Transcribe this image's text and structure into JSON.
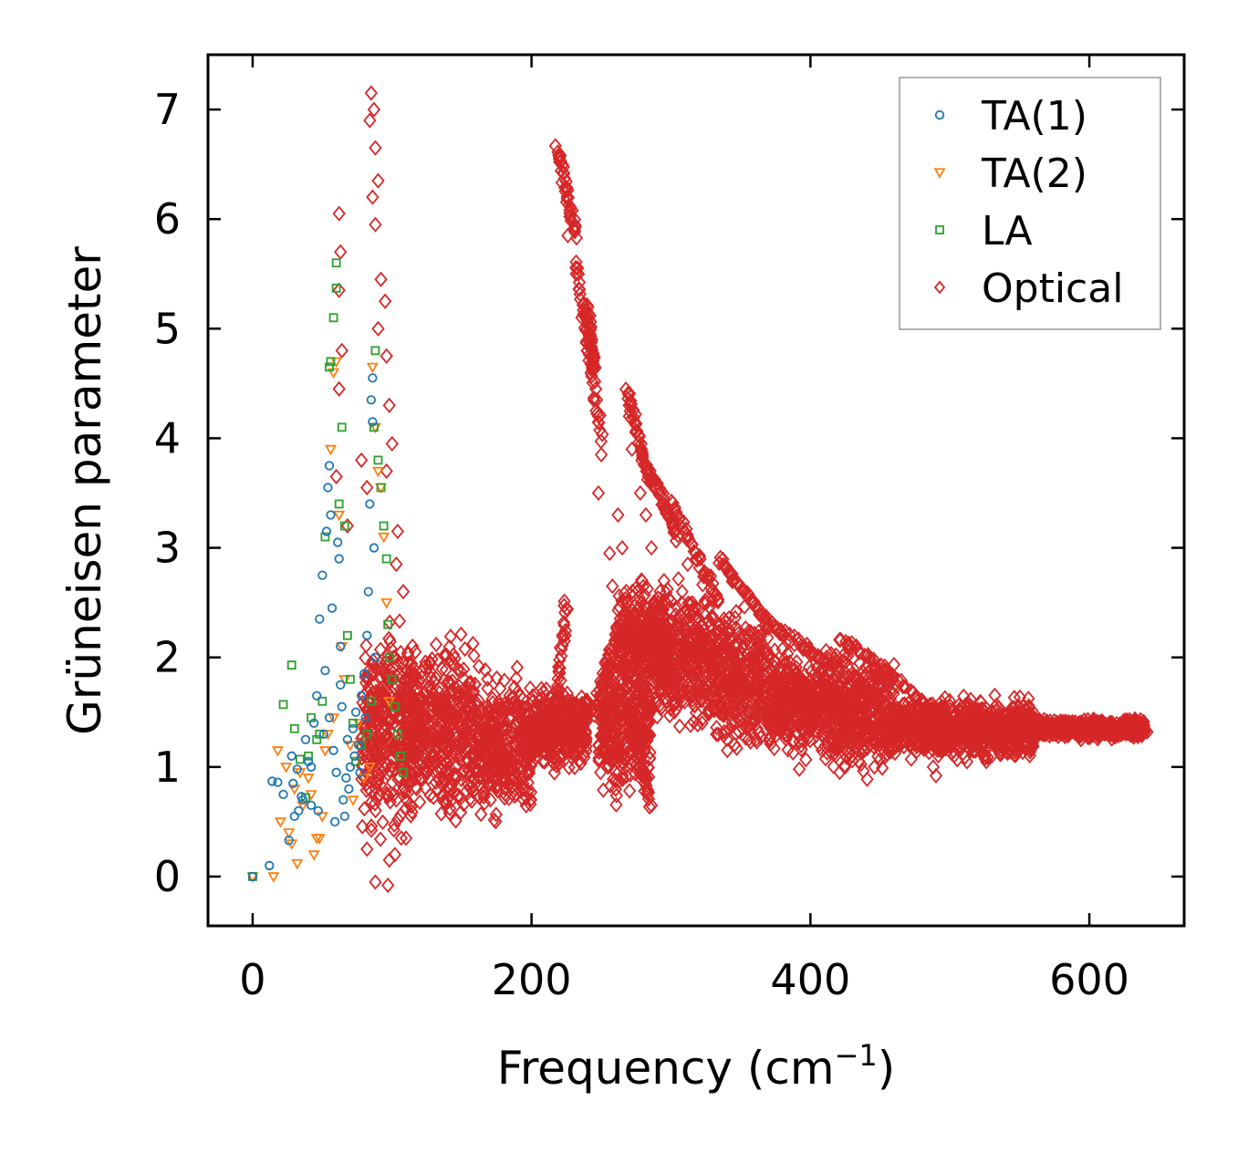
{
  "chart_data": {
    "type": "scatter",
    "title": "",
    "xlabel": "Frequency (cm",
    "xlabel_sup": "−1",
    "xlabel_close": ")",
    "ylabel": "Grüneisen parameter",
    "xlim": [
      -32,
      668
    ],
    "ylim": [
      -0.45,
      7.5
    ],
    "xticks": [
      0,
      200,
      400,
      600
    ],
    "xtick_labels": [
      "0",
      "200",
      "400",
      "600"
    ],
    "yticks": [
      0,
      1,
      2,
      3,
      4,
      5,
      6,
      7
    ],
    "ytick_labels": [
      "0",
      "1",
      "2",
      "3",
      "4",
      "5",
      "6",
      "7"
    ],
    "grid": false,
    "legend_position": "top-right",
    "colors": {
      "ta1": "#1f77b4",
      "ta2": "#ff7f0e",
      "la": "#2ca02c",
      "optical": "#d62728",
      "axis": "#000000"
    },
    "series": [
      {
        "name": "TA(1)",
        "marker": "circle",
        "color": "#1f77b4",
        "points": [
          [
            0,
            0.0
          ],
          [
            12,
            0.1
          ],
          [
            14,
            0.87
          ],
          [
            18,
            0.86
          ],
          [
            22,
            0.75
          ],
          [
            26,
            0.33
          ],
          [
            28,
            1.1
          ],
          [
            30,
            0.55
          ],
          [
            32,
            0.98
          ],
          [
            35,
            0.73
          ],
          [
            38,
            1.25
          ],
          [
            40,
            1.05
          ],
          [
            42,
            0.65
          ],
          [
            44,
            1.4
          ],
          [
            46,
            1.65
          ],
          [
            48,
            2.35
          ],
          [
            50,
            2.75
          ],
          [
            52,
            1.88
          ],
          [
            53,
            3.15
          ],
          [
            54,
            3.55
          ],
          [
            55,
            3.75
          ],
          [
            56,
            3.3
          ],
          [
            57,
            2.45
          ],
          [
            58,
            1.15
          ],
          [
            60,
            0.95
          ],
          [
            61,
            3.05
          ],
          [
            62,
            2.9
          ],
          [
            63,
            2.1
          ],
          [
            64,
            1.55
          ],
          [
            65,
            0.7
          ],
          [
            66,
            0.55
          ],
          [
            67,
            0.9
          ],
          [
            68,
            1.25
          ],
          [
            70,
            1.0
          ],
          [
            72,
            1.35
          ],
          [
            74,
            1.5
          ],
          [
            76,
            1.2
          ],
          [
            78,
            1.65
          ],
          [
            80,
            1.85
          ],
          [
            82,
            2.2
          ],
          [
            83,
            2.6
          ],
          [
            84,
            3.4
          ],
          [
            85,
            4.35
          ],
          [
            86,
            4.55
          ],
          [
            87,
            3.0
          ],
          [
            88,
            2.0
          ],
          [
            86,
            4.15
          ],
          [
            36,
            0.7
          ],
          [
            33,
            0.6
          ],
          [
            29,
            0.85
          ],
          [
            42,
            1.0
          ],
          [
            47,
            0.6
          ],
          [
            51,
            1.3
          ],
          [
            55,
            1.45
          ],
          [
            59,
            0.5
          ],
          [
            63,
            1.75
          ],
          [
            69,
            0.8
          ],
          [
            73,
            1.1
          ],
          [
            77,
            0.95
          ],
          [
            81,
            1.45
          ]
        ]
      },
      {
        "name": "TA(2)",
        "marker": "triangle-down",
        "color": "#ff7f0e",
        "points": [
          [
            0,
            0.0
          ],
          [
            15,
            0.0
          ],
          [
            18,
            1.15
          ],
          [
            20,
            0.5
          ],
          [
            24,
            1.0
          ],
          [
            28,
            0.3
          ],
          [
            30,
            0.8
          ],
          [
            32,
            0.12
          ],
          [
            36,
            0.65
          ],
          [
            40,
            0.9
          ],
          [
            44,
            0.2
          ],
          [
            46,
            0.35
          ],
          [
            48,
            0.35
          ],
          [
            52,
            1.15
          ],
          [
            54,
            1.3
          ],
          [
            56,
            3.9
          ],
          [
            58,
            4.6
          ],
          [
            60,
            4.7
          ],
          [
            62,
            3.3
          ],
          [
            64,
            2.1
          ],
          [
            66,
            1.8
          ],
          [
            70,
            1.2
          ],
          [
            72,
            0.7
          ],
          [
            76,
            1.4
          ],
          [
            80,
            0.9
          ],
          [
            84,
            1.0
          ],
          [
            86,
            4.65
          ],
          [
            88,
            4.1
          ],
          [
            90,
            3.7
          ],
          [
            92,
            3.55
          ],
          [
            94,
            3.1
          ],
          [
            96,
            2.5
          ],
          [
            98,
            1.6
          ],
          [
            58,
            1.45
          ],
          [
            50,
            0.55
          ],
          [
            42,
            0.75
          ],
          [
            34,
            0.95
          ],
          [
            26,
            0.4
          ]
        ]
      },
      {
        "name": "LA",
        "marker": "square",
        "color": "#2ca02c",
        "points": [
          [
            0,
            0.0
          ],
          [
            22,
            1.57
          ],
          [
            28,
            1.93
          ],
          [
            30,
            1.35
          ],
          [
            34,
            1.07
          ],
          [
            38,
            0.72
          ],
          [
            42,
            1.45
          ],
          [
            46,
            1.25
          ],
          [
            50,
            1.6
          ],
          [
            52,
            3.1
          ],
          [
            55,
            4.65
          ],
          [
            58,
            5.1
          ],
          [
            60,
            5.6
          ],
          [
            62,
            3.4
          ],
          [
            64,
            4.1
          ],
          [
            66,
            3.2
          ],
          [
            68,
            2.2
          ],
          [
            70,
            1.8
          ],
          [
            72,
            1.4
          ],
          [
            74,
            1.05
          ],
          [
            78,
            1.2
          ],
          [
            82,
            1.3
          ],
          [
            85,
            1.6
          ],
          [
            87,
            4.1
          ],
          [
            88,
            4.8
          ],
          [
            90,
            3.8
          ],
          [
            92,
            3.55
          ],
          [
            94,
            3.2
          ],
          [
            96,
            2.9
          ],
          [
            97,
            2.3
          ],
          [
            98,
            2.0
          ],
          [
            100,
            1.8
          ],
          [
            102,
            1.55
          ],
          [
            104,
            1.3
          ],
          [
            106,
            1.1
          ],
          [
            108,
            0.95
          ],
          [
            60,
            5.37
          ],
          [
            56,
            4.7
          ],
          [
            48,
            1.3
          ],
          [
            40,
            1.1
          ]
        ]
      },
      {
        "name": "Optical",
        "marker": "diamond",
        "color": "#d62728",
        "bands": [
          {
            "x_range": [
              78,
              115
            ],
            "y_range": [
              0.2,
              2.5
            ]
          },
          {
            "x_range": [
              110,
              135
            ],
            "y_range": [
              0.4,
              2.3
            ]
          },
          {
            "x_range": [
              135,
              160
            ],
            "y_range": [
              0.3,
              2.4
            ]
          },
          {
            "x_range": [
              160,
              200
            ],
            "y_range": [
              0.35,
              2.0
            ]
          },
          {
            "x_range": [
              200,
              240
            ],
            "y_range": [
              0.9,
              1.8
            ]
          },
          {
            "x_range": [
              248,
              285
            ],
            "y_range": [
              0.6,
              2.2
            ]
          },
          {
            "x_range": [
              262,
              300
            ],
            "y_range": [
              1.4,
              2.9
            ]
          },
          {
            "x_range": [
              290,
              330
            ],
            "y_range": [
              1.2,
              2.8
            ]
          },
          {
            "x_range": [
              330,
              370
            ],
            "y_range": [
              1.0,
              2.6
            ]
          },
          {
            "x_range": [
              370,
              410
            ],
            "y_range": [
              1.0,
              2.2
            ]
          },
          {
            "x_range": [
              410,
              460
            ],
            "y_range": [
              0.8,
              2.2
            ]
          },
          {
            "x_range": [
              460,
              560
            ],
            "y_range": [
              1.0,
              1.7
            ]
          },
          {
            "x_range": [
              560,
              640
            ],
            "y_range": [
              1.25,
              1.45
            ]
          }
        ],
        "lines": [
          {
            "from": [
              218,
              6.65
            ],
            "to": [
              232,
              5.85
            ]
          },
          {
            "from": [
              232,
              5.6
            ],
            "to": [
              250,
              4.0
            ]
          },
          {
            "from": [
              240,
              5.2
            ],
            "to": [
              245,
              4.6
            ]
          },
          {
            "from": [
              268,
              4.45
            ],
            "to": [
              285,
              3.6
            ]
          },
          {
            "from": [
              285,
              3.7
            ],
            "to": [
              305,
              3.1
            ]
          },
          {
            "from": [
              300,
              3.4
            ],
            "to": [
              335,
              2.5
            ]
          },
          {
            "from": [
              335,
              2.9
            ],
            "to": [
              370,
              2.3
            ]
          },
          {
            "from": [
              370,
              2.3
            ],
            "to": [
              420,
              1.9
            ]
          },
          {
            "from": [
              420,
              2.2
            ],
            "to": [
              480,
              1.6
            ]
          },
          {
            "from": [
              600,
              1.43
            ],
            "to": [
              640,
              1.28
            ]
          },
          {
            "from": [
              245,
              1.5
            ],
            "to": [
              262,
              2.3
            ]
          },
          {
            "from": [
              270,
              1.6
            ],
            "to": [
              285,
              0.65
            ]
          },
          {
            "from": [
              215,
              1.2
            ],
            "to": [
              225,
              2.5
            ]
          }
        ],
        "points": [
          [
            85,
            7.15
          ],
          [
            87,
            7.0
          ],
          [
            84,
            6.9
          ],
          [
            88,
            6.65
          ],
          [
            90,
            6.35
          ],
          [
            86,
            6.2
          ],
          [
            88,
            5.95
          ],
          [
            62,
            6.05
          ],
          [
            63,
            5.7
          ],
          [
            62,
            5.35
          ],
          [
            92,
            5.45
          ],
          [
            95,
            5.25
          ],
          [
            90,
            5.0
          ],
          [
            64,
            4.8
          ],
          [
            96,
            4.75
          ],
          [
            62,
            4.45
          ],
          [
            98,
            4.3
          ],
          [
            100,
            3.95
          ],
          [
            96,
            3.7
          ],
          [
            78,
            3.8
          ],
          [
            82,
            3.55
          ],
          [
            104,
            3.15
          ],
          [
            103,
            2.85
          ],
          [
            108,
            2.6
          ],
          [
            98,
            0.15
          ],
          [
            97,
            -0.08
          ],
          [
            102,
            0.2
          ],
          [
            88,
            -0.05
          ],
          [
            68,
            3.2
          ],
          [
            60,
            3.65
          ],
          [
            82,
            0.25
          ],
          [
            110,
            0.35
          ],
          [
            226,
            5.85
          ],
          [
            232,
            5.5
          ],
          [
            236,
            5.1
          ],
          [
            240,
            4.8
          ],
          [
            248,
            4.2
          ],
          [
            250,
            3.85
          ],
          [
            248,
            3.5
          ],
          [
            256,
            2.95
          ],
          [
            258,
            2.65
          ],
          [
            262,
            3.3
          ],
          [
            265,
            3.0
          ],
          [
            268,
            2.5
          ],
          [
            270,
            4.2
          ],
          [
            272,
            3.9
          ],
          [
            278,
            3.5
          ],
          [
            282,
            3.3
          ],
          [
            286,
            3.0
          ],
          [
            295,
            2.7
          ],
          [
            308,
            2.6
          ],
          [
            312,
            2.85
          ],
          [
            318,
            2.95
          ],
          [
            324,
            2.75
          ],
          [
            338,
            2.35
          ],
          [
            342,
            2.25
          ],
          [
            346,
            2.1
          ],
          [
            350,
            2.0
          ],
          [
            356,
            1.95
          ],
          [
            362,
            1.8
          ],
          [
            372,
            1.7
          ],
          [
            382,
            1.8
          ],
          [
            388,
            1.62
          ],
          [
            392,
            0.98
          ],
          [
            398,
            1.3
          ],
          [
            460,
            1.25
          ],
          [
            470,
            1.4
          ],
          [
            478,
            1.55
          ],
          [
            486,
            1.3
          ],
          [
            488,
            1.0
          ],
          [
            490,
            0.92
          ],
          [
            500,
            1.35
          ],
          [
            510,
            1.2
          ],
          [
            520,
            1.28
          ],
          [
            530,
            1.1
          ],
          [
            540,
            1.32
          ],
          [
            550,
            1.25
          ],
          [
            565,
            1.33
          ],
          [
            580,
            1.3
          ],
          [
            594,
            1.25
          ],
          [
            605,
            1.35
          ],
          [
            615,
            1.38
          ],
          [
            625,
            1.33
          ],
          [
            635,
            1.3
          ]
        ]
      }
    ]
  }
}
